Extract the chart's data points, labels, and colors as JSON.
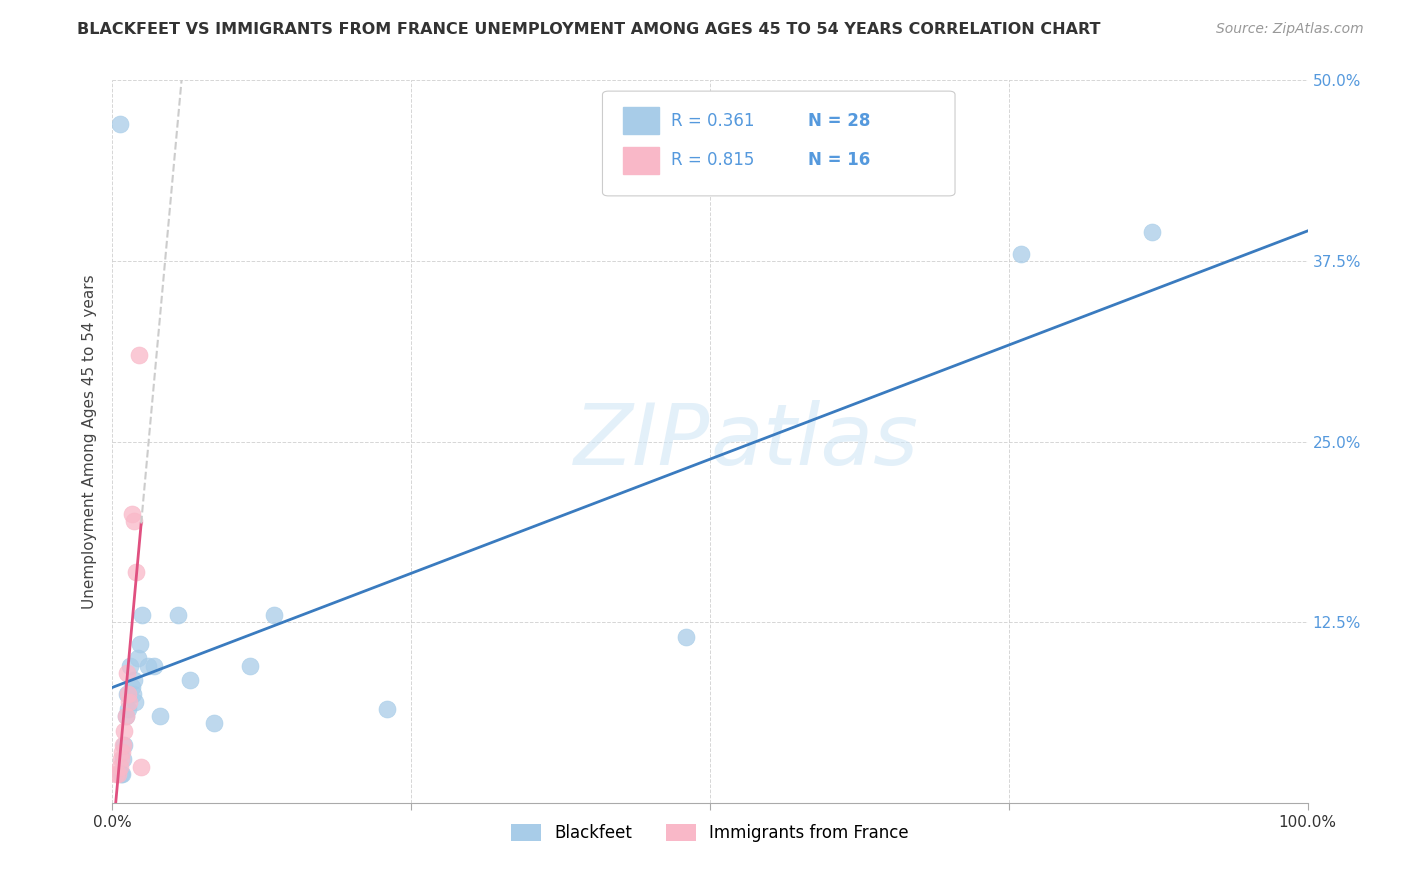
{
  "title": "BLACKFEET VS IMMIGRANTS FROM FRANCE UNEMPLOYMENT AMONG AGES 45 TO 54 YEARS CORRELATION CHART",
  "source": "Source: ZipAtlas.com",
  "ylabel": "Unemployment Among Ages 45 to 54 years",
  "xlim": [
    0.0,
    1.0
  ],
  "ylim": [
    0.0,
    0.5
  ],
  "legend_r_blue": "R = 0.361",
  "legend_n_blue": "N = 28",
  "legend_r_pink": "R = 0.815",
  "legend_n_pink": "N = 16",
  "watermark": "ZIPatlas",
  "blue_scatter_color": "#a8cce8",
  "pink_scatter_color": "#f9b8c8",
  "blue_line_color": "#3a7bbf",
  "pink_line_color": "#e05080",
  "dashed_line_color": "#cccccc",
  "tick_color": "#5599dd",
  "title_color": "#333333",
  "source_color": "#999999",
  "blackfeet_x": [
    0.006,
    0.007,
    0.008,
    0.009,
    0.01,
    0.011,
    0.012,
    0.013,
    0.015,
    0.016,
    0.017,
    0.018,
    0.019,
    0.021,
    0.023,
    0.025,
    0.03,
    0.035,
    0.04,
    0.055,
    0.065,
    0.085,
    0.115,
    0.135,
    0.23,
    0.48,
    0.76,
    0.87
  ],
  "blackfeet_y": [
    0.47,
    0.02,
    0.02,
    0.03,
    0.04,
    0.06,
    0.075,
    0.065,
    0.095,
    0.08,
    0.075,
    0.085,
    0.07,
    0.1,
    0.11,
    0.13,
    0.095,
    0.095,
    0.06,
    0.13,
    0.085,
    0.055,
    0.095,
    0.13,
    0.065,
    0.115,
    0.38,
    0.395
  ],
  "france_x": [
    0.003,
    0.005,
    0.006,
    0.007,
    0.008,
    0.009,
    0.01,
    0.011,
    0.012,
    0.013,
    0.014,
    0.016,
    0.018,
    0.02,
    0.022,
    0.024
  ],
  "france_y": [
    0.02,
    0.02,
    0.025,
    0.03,
    0.035,
    0.04,
    0.05,
    0.06,
    0.09,
    0.075,
    0.07,
    0.2,
    0.195,
    0.16,
    0.31,
    0.025
  ],
  "title_fontsize": 11.5,
  "axis_label_fontsize": 11,
  "tick_fontsize": 11,
  "legend_fontsize": 12,
  "source_fontsize": 10
}
